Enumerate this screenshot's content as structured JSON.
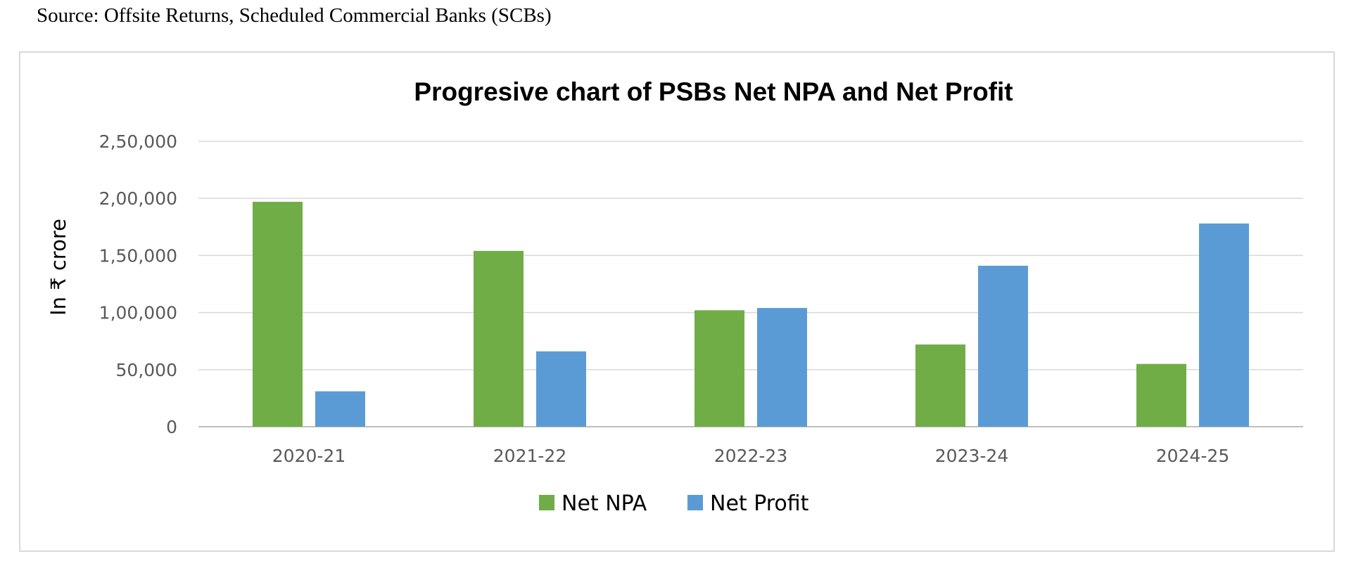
{
  "source_text": "Source: Offsite Returns, Scheduled Commercial Banks (SCBs)",
  "chart_data": {
    "type": "bar",
    "title": "Progresive chart of PSBs Net NPA and Net Profit",
    "xlabel": "",
    "ylabel": "In ₹ crore",
    "categories": [
      "2020-21",
      "2021-22",
      "2022-23",
      "2023-24",
      "2024-25"
    ],
    "series": [
      {
        "name": "Net NPA",
        "color": "#70ad47",
        "values": [
          197000,
          154000,
          102000,
          72000,
          55000
        ]
      },
      {
        "name": "Net Profit",
        "color": "#5b9bd5",
        "values": [
          31000,
          66000,
          104000,
          141000,
          178000
        ]
      }
    ],
    "ylim": [
      0,
      250000
    ],
    "yticks": [
      0,
      50000,
      100000,
      150000,
      200000,
      250000
    ],
    "ytick_labels": [
      "0",
      "50,000",
      "1,00,000",
      "1,50,000",
      "2,00,000",
      "2,50,000"
    ],
    "grid": true,
    "legend_position": "bottom"
  }
}
